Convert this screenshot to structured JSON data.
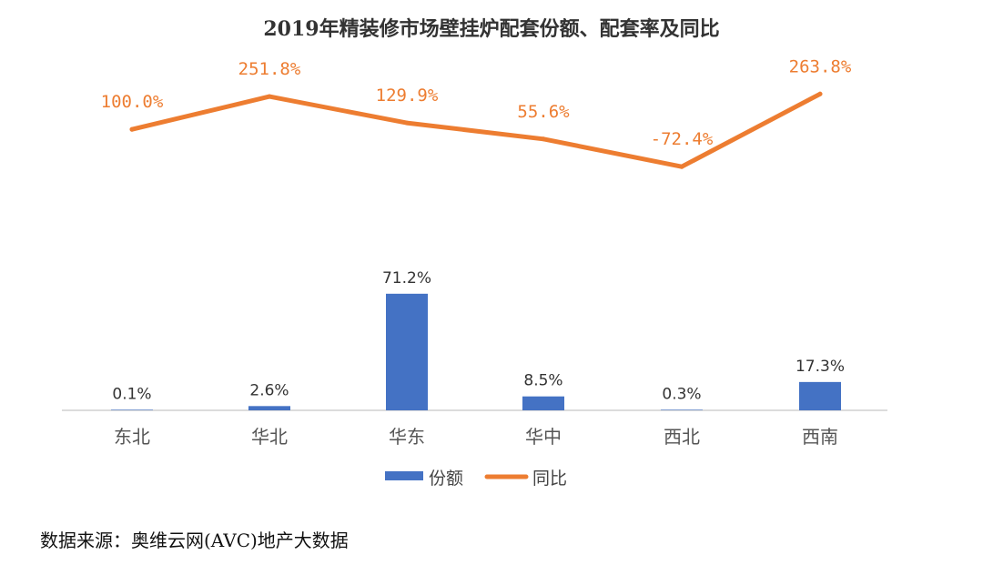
{
  "chart_data": {
    "type": "bar",
    "title": "2019年精装修市场壁挂炉配套份额、配套率及同比",
    "categories": [
      "东北",
      "华北",
      "华东",
      "华中",
      "西北",
      "西南"
    ],
    "series": [
      {
        "name": "份额",
        "type": "bar",
        "values": [
          0.1,
          2.6,
          71.2,
          8.5,
          0.3,
          17.3
        ],
        "labels": [
          "0.1%",
          "2.6%",
          "71.2%",
          "8.5%",
          "0.3%",
          "17.3%"
        ],
        "color": "#4472C4"
      },
      {
        "name": "同比",
        "type": "line",
        "values": [
          100.0,
          251.8,
          129.9,
          55.6,
          -72.4,
          263.8
        ],
        "labels": [
          "100.0%",
          "251.8%",
          "129.9%",
          "55.6%",
          "-72.4%",
          "263.8%"
        ],
        "color": "#ED7D31"
      }
    ],
    "legend_position": "bottom",
    "grid": false
  },
  "source_text": "数据来源：奥维云网(AVC)地产大数据"
}
